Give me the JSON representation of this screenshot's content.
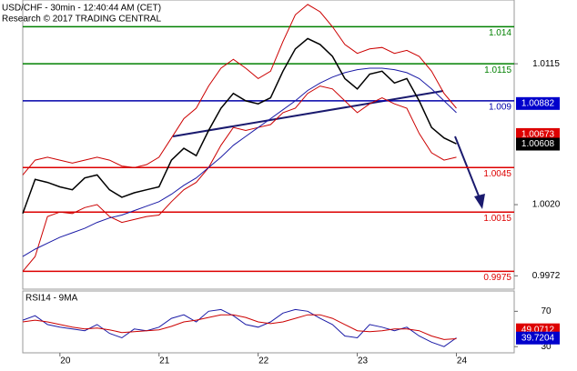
{
  "chart_data": [
    {
      "type": "line",
      "title": "USD/CHF - 30min - 12:40:44 AM (CET)",
      "subtitle": "Research © 2017 TRADING CENTRAL",
      "x": [
        -9,
        -6,
        -3,
        0,
        3,
        6,
        9,
        12,
        15,
        18,
        21,
        24,
        27,
        30,
        33,
        36,
        39,
        42,
        45,
        48,
        51,
        54,
        57,
        60,
        63,
        66,
        69,
        72,
        75,
        78,
        81,
        84,
        87,
        90,
        93,
        96
      ],
      "xlim": [
        -9,
        110
      ],
      "xticks": [
        {
          "value": 0,
          "label": "20"
        },
        {
          "value": 24,
          "label": "21"
        },
        {
          "value": 48,
          "label": "22"
        },
        {
          "value": 72,
          "label": "23"
        },
        {
          "value": 96,
          "label": "24"
        }
      ],
      "ylim": [
        0.9963,
        1.0158
      ],
      "yticks": [
        1.0115,
        {
          "value": 1.002,
          "label": "1.0020"
        },
        0.9972
      ],
      "series": [
        {
          "color": "#cc0000",
          "values": [
            1.004,
            1.005,
            1.0052,
            1.005,
            1.0048,
            1.005,
            1.0052,
            1.005,
            1.0046,
            1.0045,
            1.0047,
            1.0052,
            1.0065,
            1.0078,
            1.0085,
            1.01,
            1.0112,
            1.0118,
            1.0112,
            1.0105,
            1.011,
            1.013,
            1.0148,
            1.0155,
            1.015,
            1.014,
            1.0128,
            1.0122,
            1.0125,
            1.0126,
            1.0122,
            1.0124,
            1.012,
            1.011,
            1.0095,
            1.0085
          ]
        },
        {
          "color": "#cc0000",
          "values": [
            0.9975,
            0.9985,
            1.0012,
            1.0015,
            1.0014,
            1.0018,
            1.002,
            1.0012,
            1.0008,
            1.001,
            1.0012,
            1.0013,
            1.0022,
            1.003,
            1.0035,
            1.0045,
            1.006,
            1.0072,
            1.007,
            1.0072,
            1.0074,
            1.0082,
            1.0085,
            1.0095,
            1.01,
            1.0098,
            1.009,
            1.0082,
            1.0088,
            1.0092,
            1.0088,
            1.0085,
            1.0068,
            1.0055,
            1.005,
            1.0052
          ]
        },
        {
          "color": "#1a1aa6",
          "values": [
            0.9985,
            0.999,
            0.9994,
            0.9998,
            1.0001,
            1.0004,
            1.0008,
            1.0011,
            1.0013,
            1.0016,
            1.0019,
            1.0022,
            1.0027,
            1.0033,
            1.0038,
            1.0045,
            1.0052,
            1.006,
            1.0066,
            1.0072,
            1.0078,
            1.0084,
            1.009,
            1.0097,
            1.0102,
            1.0106,
            1.0109,
            1.0111,
            1.0112,
            1.0112,
            1.0111,
            1.0109,
            1.0105,
            1.0098,
            1.009,
            1.0082
          ]
        },
        {
          "color": "#000000",
          "values": [
            1.0014,
            1.0037,
            1.0035,
            1.0032,
            1.003,
            1.0038,
            1.004,
            1.003,
            1.0025,
            1.0028,
            1.003,
            1.0032,
            1.005,
            1.0058,
            1.0053,
            1.007,
            1.0085,
            1.0095,
            1.009,
            1.0088,
            1.0092,
            1.011,
            1.0125,
            1.0132,
            1.0128,
            1.012,
            1.0105,
            1.0098,
            1.0108,
            1.011,
            1.0102,
            1.0105,
            1.009,
            1.0072,
            1.0065,
            1.0061
          ]
        }
      ],
      "levels": [
        {
          "value": 1.014,
          "color": "#008000"
        },
        {
          "value": 1.0115,
          "color": "#008000"
        },
        {
          "value": 1.009,
          "color": "#0000aa"
        },
        {
          "value": 1.0045,
          "color": "#dd0000"
        },
        {
          "value": 1.0015,
          "color": "#dd0000"
        },
        {
          "value": 0.9975,
          "color": "#dd0000"
        }
      ],
      "price_tags": [
        {
          "value": 1.00882,
          "color": "#0000cc"
        },
        {
          "value": 1.00673,
          "color": "#dd0000"
        },
        {
          "value": 1.00608,
          "color": "#000000"
        }
      ]
    },
    {
      "type": "line",
      "title": "RSI14 - 9MA",
      "xlim": [
        -9,
        110
      ],
      "ylim": [
        23,
        93
      ],
      "yticks": [
        70,
        30
      ],
      "series": [
        {
          "color": "#1a1aa6",
          "values": [
            60,
            65,
            55,
            52,
            50,
            48,
            55,
            45,
            40,
            50,
            48,
            52,
            62,
            66,
            58,
            70,
            72,
            65,
            55,
            52,
            58,
            68,
            72,
            70,
            62,
            55,
            42,
            40,
            55,
            52,
            48,
            52,
            42,
            35,
            30,
            40
          ]
        },
        {
          "color": "#cc0000",
          "values": [
            58,
            60,
            58,
            55,
            52,
            50,
            51,
            49,
            46,
            47,
            48,
            49,
            53,
            58,
            60,
            63,
            66,
            66,
            63,
            58,
            56,
            58,
            62,
            66,
            66,
            62,
            55,
            48,
            47,
            48,
            50,
            50,
            48,
            42,
            38,
            39
          ]
        }
      ],
      "price_tags": [
        {
          "value": 49.0712,
          "color": "#dd0000"
        },
        {
          "value": 39.7204,
          "color": "#0000cc"
        }
      ]
    }
  ]
}
